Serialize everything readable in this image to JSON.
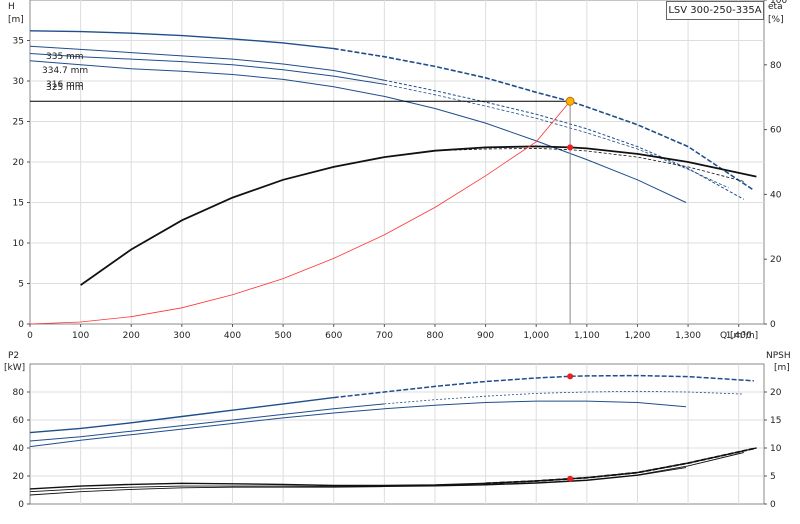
{
  "chart_data": [
    {
      "type": "line",
      "title": "LSV 300-250-335A",
      "xlabel": "Q [m³/h]",
      "ylabel": "H",
      "ylabel_unit": "[m]",
      "y2label": "eta",
      "y2label_unit": "[%]",
      "xlim": [
        0,
        1450
      ],
      "ylim": [
        0,
        40
      ],
      "y2lim": [
        0,
        100
      ],
      "x_ticks": [
        "0",
        "100",
        "200",
        "300",
        "400",
        "500",
        "600",
        "700",
        "800",
        "900",
        "1,000",
        "1,100",
        "1,200",
        "1,300",
        "1,400"
      ],
      "y_ticks": [
        "0",
        "5",
        "10",
        "15",
        "20",
        "25",
        "30",
        "35"
      ],
      "y2_ticks": [
        "0",
        "20",
        "40",
        "60",
        "80",
        "100"
      ],
      "grid": true,
      "curve_labels": [
        "335 mm",
        "334.7 mm",
        "316 mm",
        "325 mm"
      ],
      "head_curves": [
        {
          "name": "335 mm",
          "x": [
            0,
            100,
            200,
            300,
            400,
            500,
            600,
            700,
            800,
            900,
            1000,
            1067,
            1100,
            1200,
            1300,
            1430
          ],
          "y": [
            36.2,
            36.1,
            35.9,
            35.6,
            35.2,
            34.7,
            34.0,
            33.0,
            31.8,
            30.4,
            28.6,
            27.5,
            26.8,
            24.6,
            21.9,
            16.5
          ]
        },
        {
          "name": "334.7 mm",
          "x": [
            0,
            100,
            200,
            300,
            400,
            500,
            600,
            700,
            800,
            900,
            1000,
            1100,
            1200,
            1300,
            1410
          ],
          "y": [
            34.3,
            33.9,
            33.5,
            33.1,
            32.7,
            32.1,
            31.3,
            30.1,
            28.8,
            27.4,
            25.9,
            24.1,
            21.9,
            19.2,
            15.4
          ]
        },
        {
          "name": "325 mm",
          "x": [
            0,
            100,
            200,
            300,
            400,
            500,
            600,
            700,
            800,
            900,
            1000,
            1100,
            1200,
            1300,
            1380
          ],
          "y": [
            33.4,
            33.0,
            32.7,
            32.4,
            32.0,
            31.4,
            30.6,
            29.6,
            28.3,
            26.9,
            25.4,
            23.6,
            21.6,
            19.1,
            16.8
          ]
        },
        {
          "name": "316 mm",
          "x": [
            0,
            100,
            200,
            300,
            400,
            500,
            600,
            700,
            800,
            900,
            1000,
            1100,
            1200,
            1296
          ],
          "y": [
            32.5,
            32.0,
            31.5,
            31.2,
            30.8,
            30.2,
            29.3,
            28.1,
            26.6,
            24.8,
            22.6,
            20.3,
            17.8,
            15.0
          ]
        }
      ],
      "efficiency_curves": [
        {
          "x": [
            100,
            200,
            300,
            400,
            500,
            600,
            700,
            800,
            900,
            1000,
            1067,
            1100,
            1200,
            1300,
            1435
          ],
          "y": [
            12.0,
            23.0,
            32.0,
            39.0,
            44.5,
            48.5,
            51.5,
            53.5,
            54.5,
            54.8,
            54.5,
            54.2,
            52.5,
            50.0,
            45.5
          ]
        },
        {
          "x": [
            100,
            200,
            300,
            400,
            500,
            600,
            700,
            800,
            900,
            1000,
            1067,
            1100,
            1200,
            1300,
            1410
          ],
          "y": [
            12.0,
            23.0,
            32.0,
            39.0,
            44.5,
            48.5,
            51.5,
            53.5,
            54.0,
            54.2,
            53.8,
            53.4,
            51.5,
            48.5,
            44.0
          ]
        }
      ],
      "system_curve": {
        "x": [
          0,
          100,
          200,
          300,
          400,
          500,
          600,
          700,
          800,
          900,
          1000,
          1067
        ],
        "y": [
          0.0,
          0.25,
          0.9,
          2.0,
          3.6,
          5.6,
          8.1,
          11.0,
          14.4,
          18.3,
          22.5,
          27.5
        ]
      },
      "duty_point": {
        "q": 1067,
        "h": 27.5,
        "eta": 54.5
      },
      "duty_line_h": 27.5,
      "colors": {
        "head": "#1f4e8c",
        "efficiency": "#111111",
        "system": "#ff3333",
        "duty_marker": "#ffb000",
        "eta_marker": "#e82020",
        "grid": "#dddddd"
      }
    },
    {
      "type": "line",
      "ylabel": "P2",
      "ylabel_unit": "[kW]",
      "y2label": "NPSH",
      "y2label_unit": "[m]",
      "xlim": [
        0,
        1450
      ],
      "ylim": [
        0,
        100
      ],
      "y2lim": [
        0,
        25
      ],
      "y_ticks": [
        "0",
        "20",
        "40",
        "60",
        "80"
      ],
      "y2_ticks": [
        "0",
        "5",
        "10",
        "15",
        "20"
      ],
      "grid": true,
      "power_curves": [
        {
          "x": [
            0,
            100,
            200,
            300,
            400,
            500,
            600,
            700,
            800,
            900,
            1000,
            1067,
            1100,
            1200,
            1300,
            1430
          ],
          "y": [
            51.0,
            54.0,
            58.0,
            62.5,
            67.0,
            71.5,
            76.0,
            80.0,
            84.0,
            87.5,
            90.0,
            91.2,
            91.5,
            91.7,
            91.0,
            88.0
          ]
        },
        {
          "x": [
            0,
            100,
            200,
            300,
            400,
            500,
            600,
            700,
            800,
            900,
            1000,
            1100,
            1200,
            1300,
            1410
          ],
          "y": [
            45.0,
            48.0,
            52.0,
            56.0,
            60.0,
            64.0,
            68.0,
            71.5,
            74.5,
            77.0,
            79.0,
            80.0,
            80.5,
            80.0,
            78.5
          ]
        },
        {
          "x": [
            0,
            100,
            200,
            300,
            400,
            500,
            600,
            700,
            800,
            900,
            1000,
            1100,
            1200,
            1296
          ],
          "y": [
            41.0,
            45.5,
            49.5,
            53.5,
            57.5,
            61.5,
            65.0,
            68.0,
            70.5,
            72.5,
            73.5,
            73.5,
            72.5,
            69.5
          ]
        }
      ],
      "npsh_curves": [
        {
          "x": [
            0,
            100,
            200,
            300,
            400,
            500,
            600,
            700,
            800,
            900,
            1000,
            1067,
            1100,
            1200,
            1300,
            1435
          ],
          "y": [
            2.7,
            3.2,
            3.5,
            3.7,
            3.6,
            3.5,
            3.3,
            3.3,
            3.4,
            3.7,
            4.1,
            4.5,
            4.7,
            5.6,
            7.3,
            10.0
          ]
        },
        {
          "x": [
            0,
            100,
            200,
            300,
            400,
            500,
            600,
            700,
            800,
            900,
            1000,
            1100,
            1200,
            1300,
            1410
          ],
          "y": [
            2.2,
            2.7,
            3.0,
            3.2,
            3.2,
            3.2,
            3.1,
            3.2,
            3.3,
            3.5,
            3.8,
            4.3,
            5.2,
            6.8,
            9.2
          ]
        },
        {
          "x": [
            0,
            100,
            200,
            300,
            400,
            500,
            600,
            700,
            800,
            900,
            1000,
            1100,
            1200,
            1296
          ],
          "y": [
            1.6,
            2.2,
            2.6,
            2.9,
            3.0,
            3.0,
            3.0,
            3.1,
            3.2,
            3.4,
            3.7,
            4.2,
            5.1,
            6.5
          ]
        }
      ],
      "duty_point": {
        "q": 1067,
        "p2": 91.2,
        "npsh": 4.5
      },
      "colors": {
        "power": "#1f4e8c",
        "npsh": "#111111",
        "marker": "#e82020",
        "grid": "#dddddd"
      }
    }
  ]
}
